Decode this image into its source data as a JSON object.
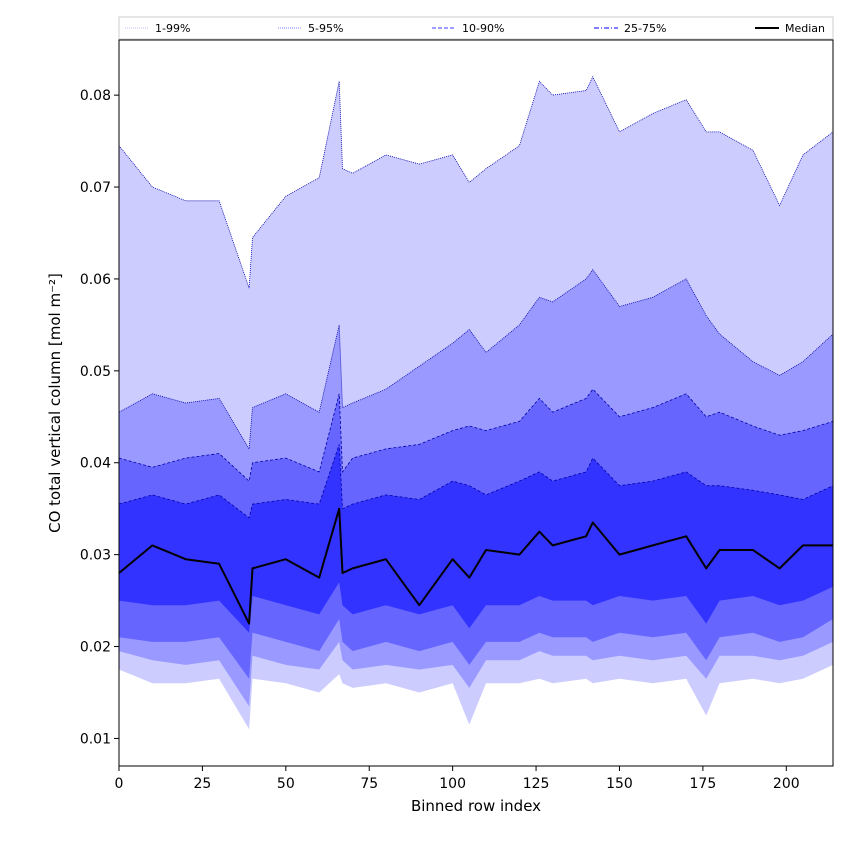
{
  "chart_data": {
    "type": "area",
    "title": "",
    "xlabel": "Binned row index",
    "ylabel": "CO total vertical column [mol m⁻²]",
    "xlim": [
      0,
      214
    ],
    "ylim": [
      0.007,
      0.086
    ],
    "x_ticks": [
      0,
      25,
      50,
      75,
      100,
      125,
      150,
      175,
      200
    ],
    "y_ticks": [
      0.01,
      0.02,
      0.03,
      0.04,
      0.05,
      0.06,
      0.07,
      0.08
    ],
    "y_tick_labels": [
      "0.01",
      "0.02",
      "0.03",
      "0.04",
      "0.05",
      "0.06",
      "0.07",
      "0.08"
    ],
    "grid": false,
    "legend_position": "top",
    "x": [
      0,
      10,
      20,
      30,
      39,
      40,
      50,
      60,
      66,
      67,
      70,
      80,
      90,
      100,
      105,
      110,
      120,
      126,
      130,
      140,
      142,
      150,
      160,
      170,
      176,
      180,
      190,
      198,
      205,
      214
    ],
    "bands": [
      {
        "name": "1-99%",
        "color": "#ccccff",
        "low": [
          0.0175,
          0.016,
          0.016,
          0.0165,
          0.011,
          0.0165,
          0.016,
          0.015,
          0.017,
          0.016,
          0.0155,
          0.016,
          0.015,
          0.016,
          0.0115,
          0.016,
          0.016,
          0.0165,
          0.016,
          0.0165,
          0.016,
          0.0165,
          0.016,
          0.0165,
          0.0125,
          0.016,
          0.0165,
          0.016,
          0.0165,
          0.018
        ],
        "high": [
          0.0745,
          0.07,
          0.0685,
          0.0685,
          0.059,
          0.0645,
          0.069,
          0.071,
          0.0815,
          0.072,
          0.0715,
          0.0735,
          0.0725,
          0.0735,
          0.0705,
          0.072,
          0.0745,
          0.0815,
          0.08,
          0.0805,
          0.082,
          0.076,
          0.078,
          0.0795,
          0.076,
          0.076,
          0.074,
          0.068,
          0.0735,
          0.076
        ]
      },
      {
        "name": "5-95%",
        "color": "#9999ff",
        "low": [
          0.0195,
          0.0185,
          0.018,
          0.0185,
          0.0135,
          0.019,
          0.018,
          0.0175,
          0.0205,
          0.0185,
          0.0175,
          0.018,
          0.0175,
          0.018,
          0.0155,
          0.0185,
          0.0185,
          0.0195,
          0.019,
          0.019,
          0.0185,
          0.019,
          0.0185,
          0.019,
          0.0165,
          0.019,
          0.019,
          0.0185,
          0.019,
          0.0205
        ],
        "high": [
          0.0455,
          0.0475,
          0.0465,
          0.047,
          0.0415,
          0.046,
          0.0475,
          0.0455,
          0.055,
          0.046,
          0.0465,
          0.048,
          0.0505,
          0.053,
          0.0545,
          0.052,
          0.055,
          0.058,
          0.0575,
          0.06,
          0.061,
          0.057,
          0.058,
          0.06,
          0.056,
          0.054,
          0.051,
          0.0495,
          0.051,
          0.054
        ]
      },
      {
        "name": "10-90%",
        "color": "#6666ff",
        "low": [
          0.021,
          0.0205,
          0.0205,
          0.021,
          0.0165,
          0.0215,
          0.0205,
          0.0195,
          0.023,
          0.0205,
          0.0195,
          0.0205,
          0.0195,
          0.0205,
          0.018,
          0.0205,
          0.0205,
          0.0215,
          0.021,
          0.021,
          0.0205,
          0.0215,
          0.021,
          0.0215,
          0.0185,
          0.021,
          0.0215,
          0.0205,
          0.021,
          0.023
        ],
        "high": [
          0.0405,
          0.0395,
          0.0405,
          0.041,
          0.038,
          0.04,
          0.0405,
          0.039,
          0.0475,
          0.039,
          0.0405,
          0.0415,
          0.042,
          0.0435,
          0.044,
          0.0435,
          0.0445,
          0.047,
          0.0455,
          0.047,
          0.048,
          0.045,
          0.046,
          0.0475,
          0.045,
          0.0455,
          0.044,
          0.043,
          0.0435,
          0.0445
        ]
      },
      {
        "name": "25-75%",
        "color": "#3333ff",
        "low": [
          0.025,
          0.0245,
          0.0245,
          0.025,
          0.0215,
          0.0255,
          0.0245,
          0.0235,
          0.027,
          0.0245,
          0.0235,
          0.0245,
          0.0235,
          0.0245,
          0.022,
          0.0245,
          0.0245,
          0.0255,
          0.025,
          0.025,
          0.0245,
          0.0255,
          0.025,
          0.0255,
          0.0225,
          0.025,
          0.0255,
          0.0245,
          0.025,
          0.0265
        ],
        "high": [
          0.0355,
          0.0365,
          0.0355,
          0.0365,
          0.034,
          0.0355,
          0.036,
          0.0355,
          0.042,
          0.035,
          0.0355,
          0.0365,
          0.036,
          0.038,
          0.0375,
          0.0365,
          0.038,
          0.039,
          0.038,
          0.039,
          0.0405,
          0.0375,
          0.038,
          0.039,
          0.0375,
          0.0375,
          0.037,
          0.0365,
          0.036,
          0.0375
        ]
      }
    ],
    "series": [
      {
        "name": "Median",
        "color": "#000000",
        "values": [
          0.028,
          0.031,
          0.0295,
          0.029,
          0.0225,
          0.0285,
          0.0295,
          0.0275,
          0.035,
          0.028,
          0.0285,
          0.0295,
          0.0245,
          0.0295,
          0.0275,
          0.0305,
          0.03,
          0.0325,
          0.031,
          0.032,
          0.0335,
          0.03,
          0.031,
          0.032,
          0.0285,
          0.0305,
          0.0305,
          0.0285,
          0.031,
          0.031
        ]
      }
    ],
    "legend": [
      {
        "label": "1-99%",
        "color": "#ccccff",
        "style": "dotted"
      },
      {
        "label": "5-95%",
        "color": "#9999ff",
        "style": "dotted"
      },
      {
        "label": "10-90%",
        "color": "#6666ff",
        "style": "dashed"
      },
      {
        "label": "25-75%",
        "color": "#3333ff",
        "style": "dashdot"
      },
      {
        "label": "Median",
        "color": "#000000",
        "style": "solid"
      }
    ]
  }
}
